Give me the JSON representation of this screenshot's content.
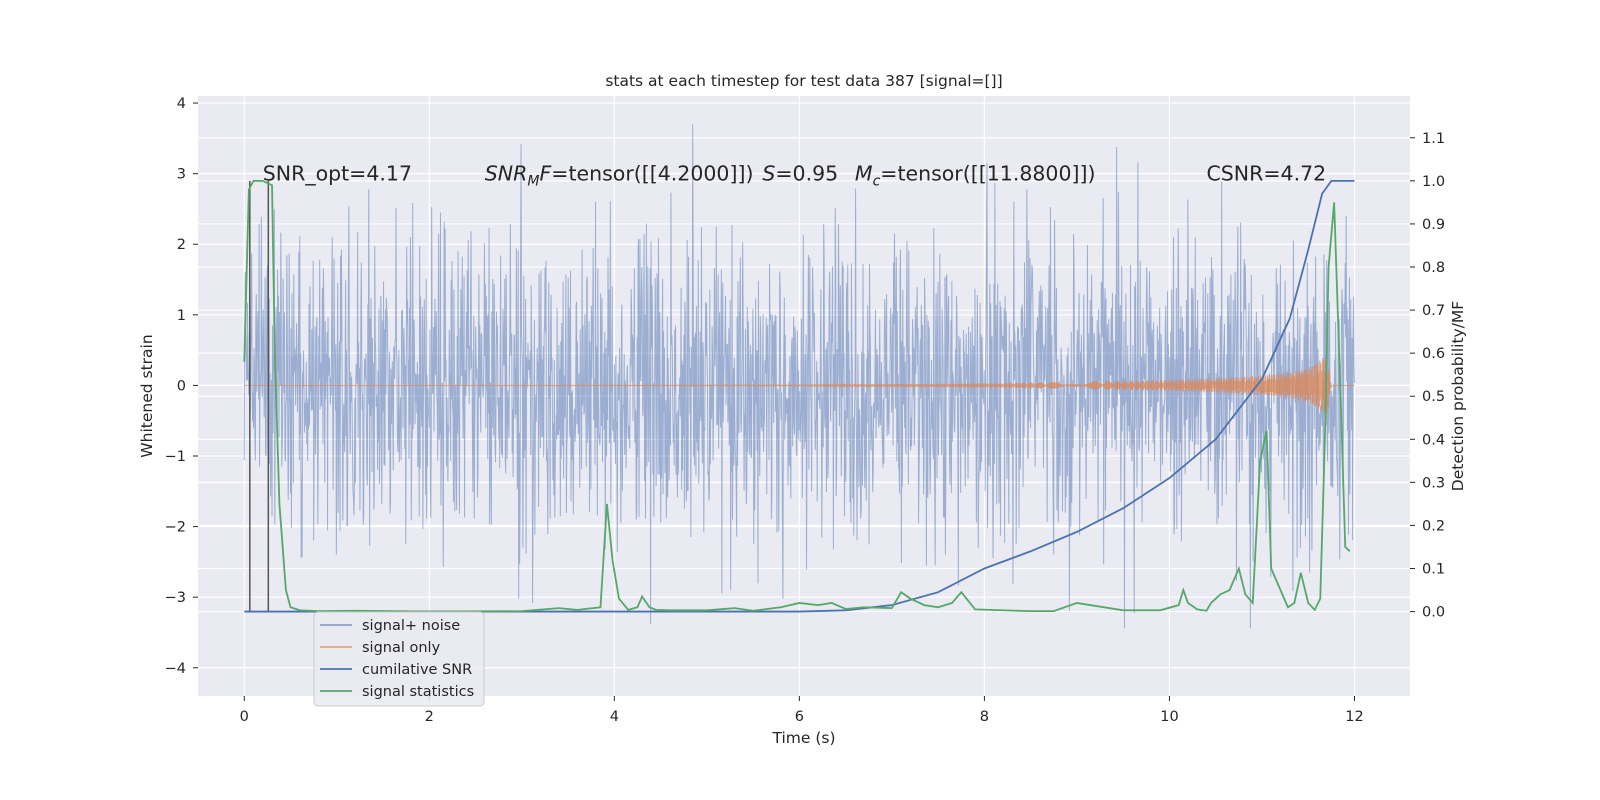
{
  "chart_data": {
    "type": "line",
    "title": "stats at each timestep for test data 387 [signal=[]]",
    "xlabel": "Time (s)",
    "ylabel": "Whitened strain",
    "y2label": "Detection probability/MF",
    "xlim": [
      -0.5,
      12.6
    ],
    "ylim": [
      -4.4,
      4.1
    ],
    "y2lim": [
      -0.196,
      1.197
    ],
    "xticks": [
      0,
      2,
      4,
      6,
      8,
      10,
      12
    ],
    "xtick_labels": [
      "0",
      "2",
      "4",
      "6",
      "8",
      "10",
      "12"
    ],
    "yticks": [
      -4,
      -3,
      -2,
      -1,
      0,
      1,
      2,
      3,
      4
    ],
    "ytick_labels": [
      "−4",
      "−3",
      "−2",
      "−1",
      "0",
      "1",
      "2",
      "3",
      "4"
    ],
    "y2ticks": [
      0.0,
      0.1,
      0.2,
      0.3,
      0.4,
      0.5,
      0.6,
      0.7,
      0.8,
      0.9,
      1.0,
      1.1
    ],
    "y2tick_labels": [
      "0.0",
      "0.1",
      "0.2",
      "0.3",
      "0.4",
      "0.5",
      "0.6",
      "0.7",
      "0.8",
      "0.9",
      "1.0",
      "1.1"
    ],
    "grid": true,
    "legend_position": "bottom-left",
    "annotations": [
      {
        "text": "SNR_opt=4.17",
        "x": 0.2,
        "y": 3.0
      },
      {
        "text": "SNR",
        "sub": "M",
        "rest": "F=tensor([[4.2000]])",
        "x": 2.6,
        "y": 3.0
      },
      {
        "text": "S",
        "rest": "=0.95",
        "x": 5.6,
        "y": 3.0
      },
      {
        "text": "M",
        "sub": "c",
        "rest": "=tensor([[11.8800]])",
        "x": 6.6,
        "y": 3.0
      },
      {
        "text": "CSNR=4.72",
        "x": 10.4,
        "y": 3.0
      }
    ],
    "vertical_lines": [
      0.06,
      0.26
    ],
    "series": [
      {
        "name": "signal+ noise",
        "axis": "left",
        "color": "#4c72b0",
        "kind": "dense_noise",
        "x_range": [
          0,
          12
        ],
        "amplitude_std": 1.05,
        "max_abs": 3.7
      },
      {
        "name": "signal only",
        "axis": "left",
        "color": "#dd8452",
        "kind": "chirp",
        "x_range": [
          0,
          11.75
        ],
        "envelope": {
          "x": [
            0,
            6,
            8,
            9,
            10,
            10.5,
            11,
            11.3,
            11.5,
            11.6,
            11.7,
            11.75
          ],
          "y": [
            0,
            0.005,
            0.03,
            0.05,
            0.08,
            0.1,
            0.14,
            0.18,
            0.25,
            0.33,
            0.45,
            0.0
          ]
        }
      },
      {
        "name": "cumilative SNR",
        "axis": "right",
        "color": "#4c72b0",
        "x": [
          0,
          6.0,
          6.5,
          7.0,
          7.5,
          8.0,
          8.5,
          9.0,
          9.5,
          10.0,
          10.5,
          11.0,
          11.3,
          11.5,
          11.65,
          11.75,
          12.0
        ],
        "values": [
          0.0,
          0.0,
          0.003,
          0.015,
          0.045,
          0.1,
          0.14,
          0.185,
          0.24,
          0.31,
          0.4,
          0.54,
          0.68,
          0.84,
          0.97,
          1.0,
          1.0
        ]
      },
      {
        "name": "signal statistics",
        "axis": "right",
        "color": "#55a868",
        "x": [
          0.0,
          0.05,
          0.1,
          0.2,
          0.3,
          0.33,
          0.38,
          0.45,
          0.5,
          0.6,
          0.8,
          1.2,
          2.0,
          3.0,
          3.4,
          3.6,
          3.85,
          3.92,
          3.98,
          4.05,
          4.15,
          4.25,
          4.3,
          4.38,
          4.45,
          4.6,
          5.0,
          5.3,
          5.5,
          5.8,
          6.0,
          6.2,
          6.35,
          6.5,
          6.7,
          7.0,
          7.1,
          7.2,
          7.35,
          7.5,
          7.65,
          7.75,
          7.9,
          8.5,
          8.75,
          9.0,
          9.5,
          9.9,
          10.1,
          10.15,
          10.2,
          10.3,
          10.4,
          10.45,
          10.55,
          10.65,
          10.75,
          10.82,
          10.9,
          10.98,
          11.05,
          11.1,
          11.2,
          11.28,
          11.35,
          11.42,
          11.5,
          11.57,
          11.63,
          11.68,
          11.72,
          11.78,
          11.85,
          11.9,
          11.95
        ],
        "values": [
          0.58,
          0.98,
          1.0,
          1.0,
          0.99,
          0.6,
          0.25,
          0.05,
          0.01,
          0.003,
          0.001,
          0.002,
          0.0,
          0.001,
          0.008,
          0.004,
          0.01,
          0.25,
          0.12,
          0.03,
          0.004,
          0.01,
          0.035,
          0.01,
          0.004,
          0.003,
          0.003,
          0.008,
          0.002,
          0.01,
          0.02,
          0.015,
          0.02,
          0.006,
          0.01,
          0.008,
          0.045,
          0.03,
          0.015,
          0.01,
          0.02,
          0.045,
          0.005,
          0.001,
          0.001,
          0.02,
          0.003,
          0.003,
          0.015,
          0.05,
          0.02,
          0.005,
          0.002,
          0.02,
          0.04,
          0.05,
          0.1,
          0.04,
          0.02,
          0.35,
          0.42,
          0.1,
          0.05,
          0.01,
          0.02,
          0.09,
          0.02,
          0.004,
          0.03,
          0.4,
          0.8,
          0.95,
          0.5,
          0.15,
          0.14
        ]
      }
    ]
  }
}
